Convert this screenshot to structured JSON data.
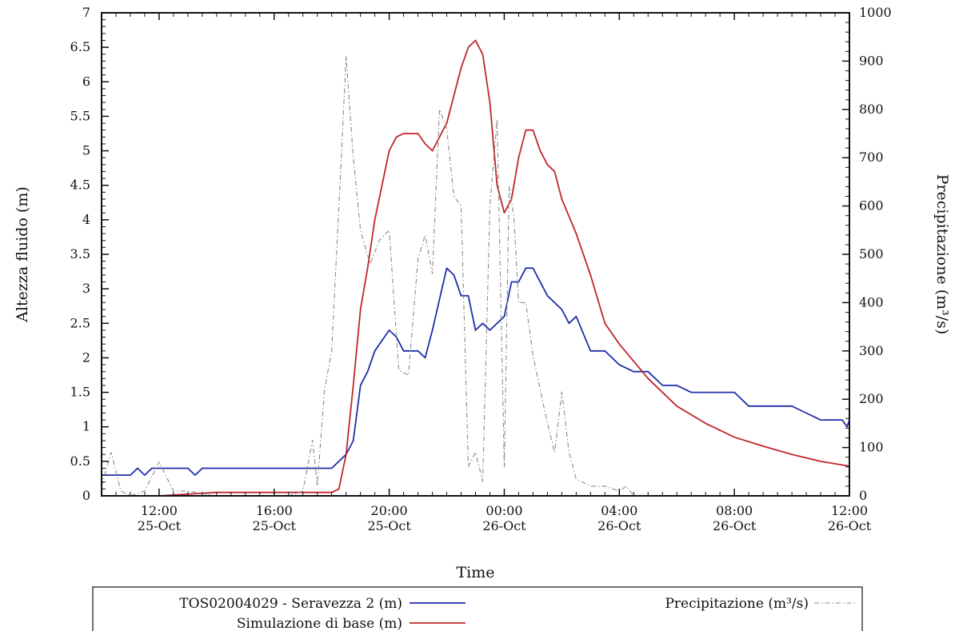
{
  "chart_data": {
    "type": "line",
    "xlabel": "Time",
    "ylabel_left": "Altezza fluido (m)",
    "ylabel_right": "Precipitazione (m³/s)",
    "xlim": [
      "2023-10-25 10:00",
      "2023-10-26 12:00"
    ],
    "ylim_left": [
      0,
      7
    ],
    "ylim_right": [
      0,
      1000
    ],
    "x_ticks": [
      {
        "time": "2023-10-25 12:00",
        "line1": "12:00",
        "line2": "25-Oct"
      },
      {
        "time": "2023-10-25 16:00",
        "line1": "16:00",
        "line2": "25-Oct"
      },
      {
        "time": "2023-10-25 20:00",
        "line1": "20:00",
        "line2": "25-Oct"
      },
      {
        "time": "2023-10-26 00:00",
        "line1": "00:00",
        "line2": "26-Oct"
      },
      {
        "time": "2023-10-26 04:00",
        "line1": "04:00",
        "line2": "26-Oct"
      },
      {
        "time": "2023-10-26 08:00",
        "line1": "08:00",
        "line2": "26-Oct"
      },
      {
        "time": "2023-10-26 12:00",
        "line1": "12:00",
        "line2": "26-Oct"
      }
    ],
    "y_ticks_left": [
      "0",
      "0.5",
      "1",
      "1.5",
      "2",
      "2.5",
      "3",
      "3.5",
      "4",
      "4.5",
      "5",
      "5.5",
      "6",
      "6.5",
      "7"
    ],
    "y_ticks_right": [
      "0",
      "100",
      "200",
      "300",
      "400",
      "500",
      "600",
      "700",
      "800",
      "900",
      "1000"
    ],
    "series": [
      {
        "name": "TOS02004029 - Seravezza 2 (m)",
        "axis": "left",
        "color": "#1f2fa8",
        "style": "solid",
        "points": [
          [
            "2023-10-25 10:00",
            0.3
          ],
          [
            "2023-10-25 11:00",
            0.3
          ],
          [
            "2023-10-25 11:15",
            0.4
          ],
          [
            "2023-10-25 11:30",
            0.3
          ],
          [
            "2023-10-25 11:45",
            0.4
          ],
          [
            "2023-10-25 12:00",
            0.4
          ],
          [
            "2023-10-25 13:00",
            0.4
          ],
          [
            "2023-10-25 13:15",
            0.3
          ],
          [
            "2023-10-25 13:30",
            0.4
          ],
          [
            "2023-10-25 14:00",
            0.4
          ],
          [
            "2023-10-25 18:00",
            0.4
          ],
          [
            "2023-10-25 18:30",
            0.6
          ],
          [
            "2023-10-25 18:45",
            0.8
          ],
          [
            "2023-10-25 19:00",
            1.6
          ],
          [
            "2023-10-25 19:15",
            1.8
          ],
          [
            "2023-10-25 19:30",
            2.1
          ],
          [
            "2023-10-25 20:00",
            2.4
          ],
          [
            "2023-10-25 20:15",
            2.3
          ],
          [
            "2023-10-25 20:30",
            2.1
          ],
          [
            "2023-10-25 21:00",
            2.1
          ],
          [
            "2023-10-25 21:15",
            2.0
          ],
          [
            "2023-10-25 21:30",
            2.4
          ],
          [
            "2023-10-25 22:00",
            3.3
          ],
          [
            "2023-10-25 22:15",
            3.2
          ],
          [
            "2023-10-25 22:30",
            2.9
          ],
          [
            "2023-10-25 22:45",
            2.9
          ],
          [
            "2023-10-25 23:00",
            2.4
          ],
          [
            "2023-10-25 23:15",
            2.5
          ],
          [
            "2023-10-25 23:30",
            2.4
          ],
          [
            "2023-10-26 00:00",
            2.6
          ],
          [
            "2023-10-26 00:15",
            3.1
          ],
          [
            "2023-10-26 00:30",
            3.1
          ],
          [
            "2023-10-26 00:45",
            3.3
          ],
          [
            "2023-10-26 01:00",
            3.3
          ],
          [
            "2023-10-26 01:30",
            2.9
          ],
          [
            "2023-10-26 02:00",
            2.7
          ],
          [
            "2023-10-26 02:15",
            2.5
          ],
          [
            "2023-10-26 02:30",
            2.6
          ],
          [
            "2023-10-26 03:00",
            2.1
          ],
          [
            "2023-10-26 03:30",
            2.1
          ],
          [
            "2023-10-26 04:00",
            1.9
          ],
          [
            "2023-10-26 04:30",
            1.8
          ],
          [
            "2023-10-26 05:00",
            1.8
          ],
          [
            "2023-10-26 05:30",
            1.6
          ],
          [
            "2023-10-26 06:00",
            1.6
          ],
          [
            "2023-10-26 06:30",
            1.5
          ],
          [
            "2023-10-26 08:00",
            1.5
          ],
          [
            "2023-10-26 08:30",
            1.3
          ],
          [
            "2023-10-26 10:00",
            1.3
          ],
          [
            "2023-10-26 10:30",
            1.2
          ],
          [
            "2023-10-26 11:00",
            1.1
          ],
          [
            "2023-10-26 11:45",
            1.1
          ],
          [
            "2023-10-26 11:55",
            1.0
          ],
          [
            "2023-10-26 12:00",
            1.1
          ]
        ]
      },
      {
        "name": "Simulazione di base (m)",
        "axis": "left",
        "color": "#c0262d",
        "style": "solid",
        "points": [
          [
            "2023-10-25 10:00",
            0.0
          ],
          [
            "2023-10-25 12:00",
            0.0
          ],
          [
            "2023-10-25 14:00",
            0.05
          ],
          [
            "2023-10-25 18:00",
            0.05
          ],
          [
            "2023-10-25 18:15",
            0.1
          ],
          [
            "2023-10-25 18:30",
            0.6
          ],
          [
            "2023-10-25 18:45",
            1.6
          ],
          [
            "2023-10-25 19:00",
            2.7
          ],
          [
            "2023-10-25 19:15",
            3.3
          ],
          [
            "2023-10-25 19:30",
            4.0
          ],
          [
            "2023-10-25 19:45",
            4.5
          ],
          [
            "2023-10-25 20:00",
            5.0
          ],
          [
            "2023-10-25 20:15",
            5.2
          ],
          [
            "2023-10-25 20:30",
            5.25
          ],
          [
            "2023-10-25 21:00",
            5.25
          ],
          [
            "2023-10-25 21:15",
            5.1
          ],
          [
            "2023-10-25 21:30",
            5.0
          ],
          [
            "2023-10-25 21:45",
            5.2
          ],
          [
            "2023-10-25 22:00",
            5.4
          ],
          [
            "2023-10-25 22:15",
            5.8
          ],
          [
            "2023-10-25 22:30",
            6.2
          ],
          [
            "2023-10-25 22:45",
            6.5
          ],
          [
            "2023-10-25 23:00",
            6.6
          ],
          [
            "2023-10-25 23:15",
            6.4
          ],
          [
            "2023-10-25 23:30",
            5.7
          ],
          [
            "2023-10-25 23:45",
            4.5
          ],
          [
            "2023-10-26 00:00",
            4.1
          ],
          [
            "2023-10-26 00:15",
            4.3
          ],
          [
            "2023-10-26 00:30",
            4.9
          ],
          [
            "2023-10-26 00:45",
            5.3
          ],
          [
            "2023-10-26 01:00",
            5.3
          ],
          [
            "2023-10-26 01:15",
            5.0
          ],
          [
            "2023-10-26 01:30",
            4.8
          ],
          [
            "2023-10-26 01:45",
            4.7
          ],
          [
            "2023-10-26 02:00",
            4.3
          ],
          [
            "2023-10-26 02:30",
            3.8
          ],
          [
            "2023-10-26 03:00",
            3.2
          ],
          [
            "2023-10-26 03:30",
            2.5
          ],
          [
            "2023-10-26 04:00",
            2.2
          ],
          [
            "2023-10-26 05:00",
            1.7
          ],
          [
            "2023-10-26 06:00",
            1.3
          ],
          [
            "2023-10-26 07:00",
            1.05
          ],
          [
            "2023-10-26 08:00",
            0.85
          ],
          [
            "2023-10-26 09:00",
            0.72
          ],
          [
            "2023-10-26 10:00",
            0.6
          ],
          [
            "2023-10-26 11:00",
            0.5
          ],
          [
            "2023-10-26 12:00",
            0.43
          ]
        ]
      },
      {
        "name": "Precipitazione (m³/s)",
        "axis": "right",
        "color": "#8a8a8a",
        "style": "dashdot",
        "points": [
          [
            "2023-10-25 10:00",
            20
          ],
          [
            "2023-10-25 10:20",
            90
          ],
          [
            "2023-10-25 10:40",
            10
          ],
          [
            "2023-10-25 11:00",
            0
          ],
          [
            "2023-10-25 11:30",
            10
          ],
          [
            "2023-10-25 12:00",
            70
          ],
          [
            "2023-10-25 12:30",
            10
          ],
          [
            "2023-10-25 13:00",
            10
          ],
          [
            "2023-10-25 13:30",
            5
          ],
          [
            "2023-10-25 14:00",
            0
          ],
          [
            "2023-10-25 16:30",
            0
          ],
          [
            "2023-10-25 17:00",
            10
          ],
          [
            "2023-10-25 17:20",
            115
          ],
          [
            "2023-10-25 17:30",
            20
          ],
          [
            "2023-10-25 17:45",
            220
          ],
          [
            "2023-10-25 18:00",
            300
          ],
          [
            "2023-10-25 18:20",
            700
          ],
          [
            "2023-10-25 18:30",
            910
          ],
          [
            "2023-10-25 18:45",
            700
          ],
          [
            "2023-10-25 19:00",
            550
          ],
          [
            "2023-10-25 19:20",
            480
          ],
          [
            "2023-10-25 19:40",
            530
          ],
          [
            "2023-10-25 20:00",
            550
          ],
          [
            "2023-10-25 20:20",
            260
          ],
          [
            "2023-10-25 20:40",
            250
          ],
          [
            "2023-10-25 21:00",
            490
          ],
          [
            "2023-10-25 21:15",
            540
          ],
          [
            "2023-10-25 21:30",
            460
          ],
          [
            "2023-10-25 21:45",
            800
          ],
          [
            "2023-10-25 22:00",
            760
          ],
          [
            "2023-10-25 22:15",
            620
          ],
          [
            "2023-10-25 22:30",
            600
          ],
          [
            "2023-10-25 22:45",
            60
          ],
          [
            "2023-10-25 23:00",
            90
          ],
          [
            "2023-10-25 23:15",
            30
          ],
          [
            "2023-10-25 23:30",
            600
          ],
          [
            "2023-10-25 23:45",
            780
          ],
          [
            "2023-10-26 00:00",
            60
          ],
          [
            "2023-10-26 00:10",
            640
          ],
          [
            "2023-10-26 00:20",
            580
          ],
          [
            "2023-10-26 00:30",
            400
          ],
          [
            "2023-10-26 00:45",
            400
          ],
          [
            "2023-10-26 01:00",
            290
          ],
          [
            "2023-10-26 01:15",
            220
          ],
          [
            "2023-10-26 01:30",
            150
          ],
          [
            "2023-10-26 01:45",
            90
          ],
          [
            "2023-10-26 02:00",
            215
          ],
          [
            "2023-10-26 02:15",
            90
          ],
          [
            "2023-10-26 02:30",
            35
          ],
          [
            "2023-10-26 03:00",
            20
          ],
          [
            "2023-10-26 03:30",
            20
          ],
          [
            "2023-10-26 04:00",
            10
          ],
          [
            "2023-10-26 04:15",
            20
          ],
          [
            "2023-10-26 04:30",
            0
          ]
        ]
      }
    ],
    "legend": {
      "placement": "bottom",
      "entries": [
        {
          "label": "TOS02004029 - Seravezza 2 (m)",
          "color": "#1f2fa8",
          "style": "solid"
        },
        {
          "label": "Precipitazione (m³/s)",
          "color": "#8a8a8a",
          "style": "dashdot"
        },
        {
          "label": "Simulazione di base (m)",
          "color": "#c0262d",
          "style": "solid"
        }
      ]
    }
  }
}
